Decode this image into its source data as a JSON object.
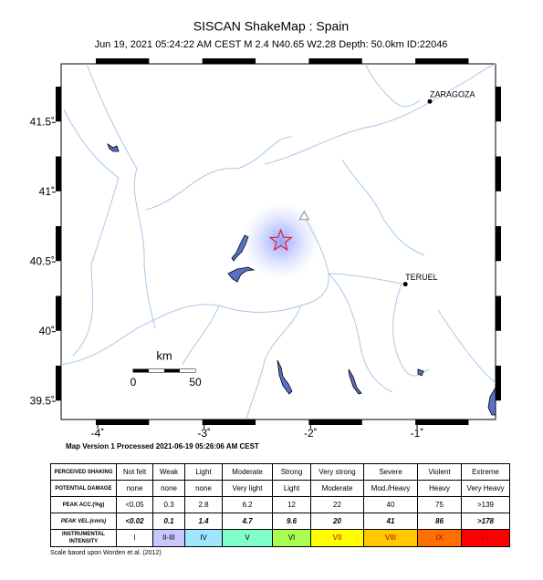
{
  "header": {
    "title": "SISCAN ShakeMap : Spain",
    "subtitle": "Jun 19, 2021 05:24:22 AM CEST   M 2.4   N40.65 W2.28   Depth: 50.0km   ID:22046"
  },
  "map": {
    "xlim": [
      -4.343,
      -0.263
    ],
    "ylim": [
      39.37,
      41.92
    ],
    "lon_ticks": [
      {
        "value": -4,
        "label": "-4˚"
      },
      {
        "value": -3,
        "label": "-3˚"
      },
      {
        "value": -2,
        "label": "-2˚"
      },
      {
        "value": -1,
        "label": "-1˚"
      }
    ],
    "lat_ticks": [
      {
        "value": 41.5,
        "label": "41.5˚"
      },
      {
        "value": 41,
        "label": "41˚"
      },
      {
        "value": 40.5,
        "label": "40.5˚"
      },
      {
        "value": 40,
        "label": "40˚"
      },
      {
        "value": 39.5,
        "label": "39.5˚"
      }
    ],
    "cities": [
      {
        "name": "ZARAGOZA",
        "lon": -0.88,
        "lat": 41.65
      },
      {
        "name": "TERUEL",
        "lon": -1.11,
        "lat": 40.34
      }
    ],
    "epicenter": {
      "lon": -2.28,
      "lat": 40.65
    },
    "station": {
      "lon": -2.06,
      "lat": 40.83
    },
    "scale_bar": {
      "unit": "km",
      "labels": [
        0,
        50
      ]
    },
    "version": "Map Version 1 Processed 2021-06-19 05:26:06 AM CEST"
  },
  "table": {
    "rows": [
      [
        "PERCEIVED SHAKING",
        "Not felt",
        "Weak",
        "Light",
        "Moderate",
        "Strong",
        "Very strong",
        "Severe",
        "Violent",
        "Extreme"
      ],
      [
        "POTENTIAL DAMAGE",
        "none",
        "none",
        "none",
        "Very light",
        "Light",
        "Moderate",
        "Mod./Heavy",
        "Heavy",
        "Very Heavy"
      ],
      [
        "PEAK ACC.(%g)",
        "<0.05",
        "0.3",
        "2.8",
        "6.2",
        "12",
        "22",
        "40",
        "75",
        ">139"
      ],
      [
        "PEAK VEL.(cm/s)",
        "<0.02",
        "0.1",
        "1.4",
        "4.7",
        "9.6",
        "20",
        "41",
        "86",
        ">178"
      ],
      [
        "INSTRUMENTAL INTENSITY",
        "I",
        "II-III",
        "IV",
        "V",
        "VI",
        "VII",
        "VIII",
        "IX",
        "X+"
      ]
    ],
    "intensity_colors": [
      "#ffffff",
      "#c8c8ff",
      "#a0e6ff",
      "#80ffc8",
      "#a8ff50",
      "#ffff00",
      "#ffc800",
      "#ff7000",
      "#ff0000"
    ]
  },
  "footnote": "Scale based upon Worden et al. (2012)"
}
